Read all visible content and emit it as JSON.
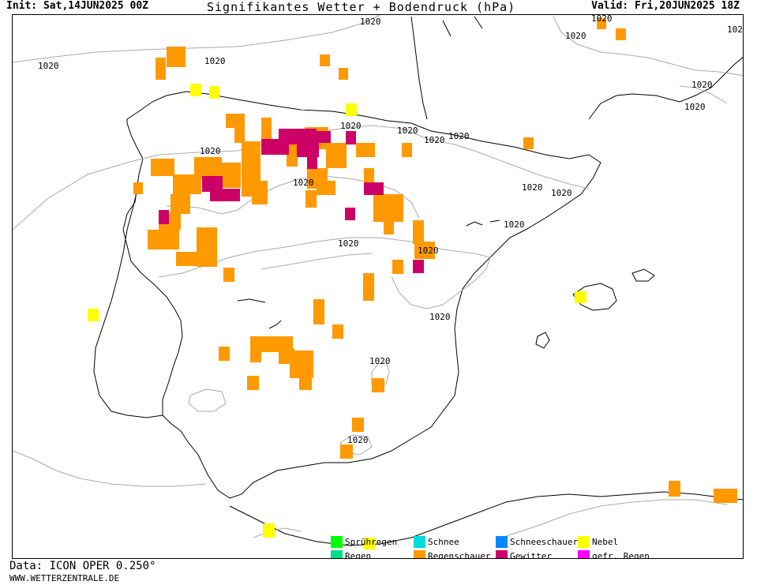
{
  "header": {
    "init_label": "Init: Sat,14JUN2025 00Z",
    "title": "Signifikantes Wetter + Bodendruck (hPa)",
    "valid_label": "Valid: Fri,20JUN2025 18Z"
  },
  "isobar_label": "1020",
  "legend": [
    {
      "label": "Sprühregen",
      "color": "#00ff00"
    },
    {
      "label": "Regen",
      "color": "#00dd88"
    },
    {
      "label": "Schnee",
      "color": "#00dddd"
    },
    {
      "label": "Regenschauer",
      "color": "#ff9900"
    },
    {
      "label": "Schneeschauer",
      "color": "#0088ff"
    },
    {
      "label": "Gewitter",
      "color": "#cc0066"
    },
    {
      "label": "Nebel",
      "color": "#ffff00"
    },
    {
      "label": "gefr. Regen",
      "color": "#ff00ff"
    }
  ],
  "footer": {
    "data_source": "Data: ICON OPER 0.250°",
    "website": "WWW.WETTERZENTRALE.DE"
  }
}
